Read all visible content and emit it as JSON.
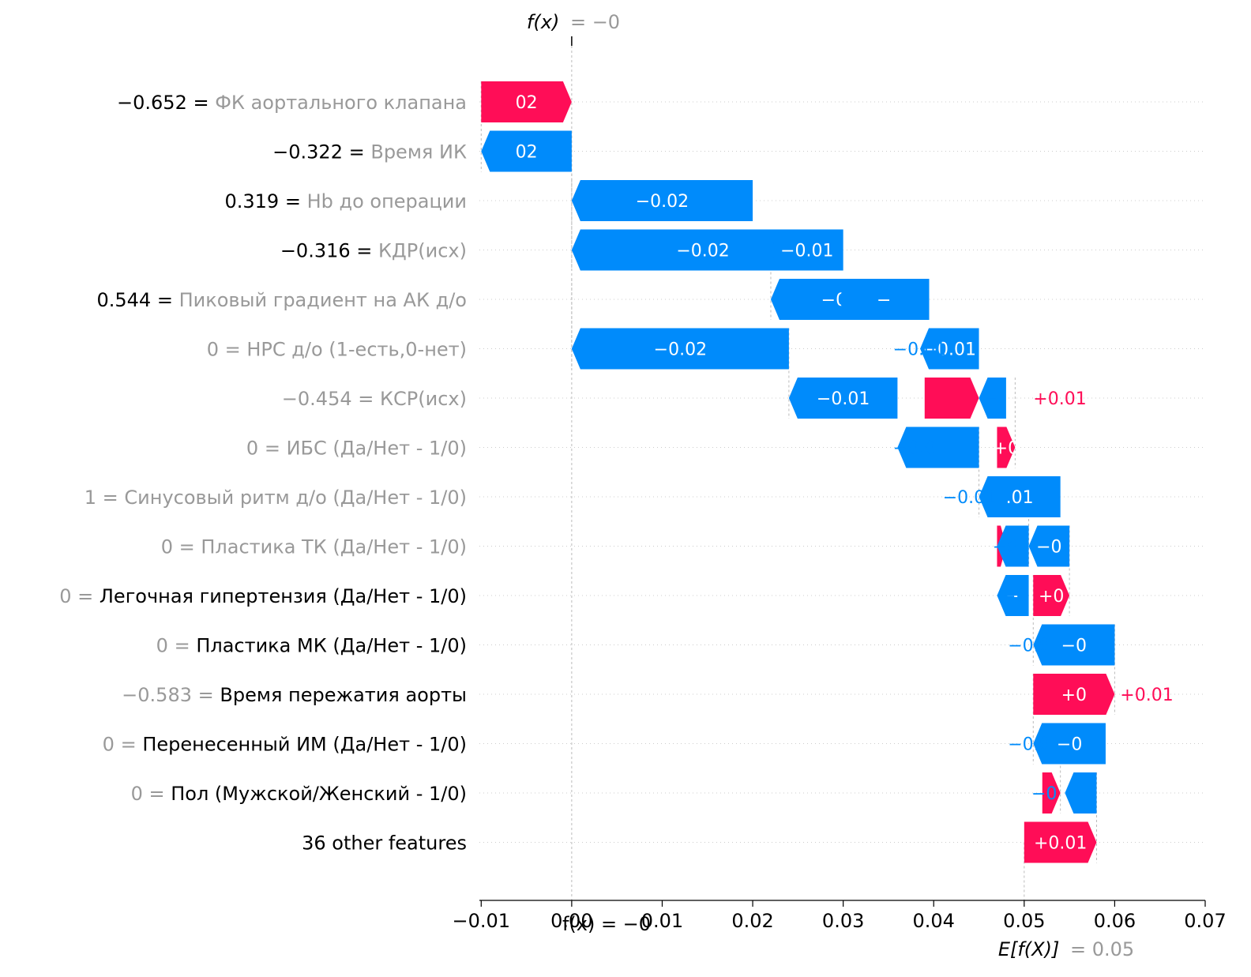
{
  "chart_data": {
    "type": "waterfall",
    "fx_label_prefix": "f(x)",
    "fx_label_value": "= −0",
    "fx_axis_label": "f(x) = −0",
    "ex_label_prefix": "E[f(X)]",
    "ex_label_value": "= 0.05",
    "colors": {
      "positive": "#ff0d57",
      "negative": "#008bfb",
      "grey": "#999999",
      "black": "#000000"
    },
    "xlim": [
      -0.0102,
      0.07
    ],
    "ticks": [
      "−0.01",
      "0.00",
      "0.01",
      "0.02",
      "0.03",
      "0.04",
      "0.05",
      "0.06",
      "0.07"
    ],
    "tick_values": [
      -0.01,
      0.0,
      0.01,
      0.02,
      0.03,
      0.04,
      0.05,
      0.06,
      0.07
    ],
    "fx": 0.0,
    "ex": 0.05,
    "rows": [
      {
        "value_text": "−0.652",
        "eq": "=",
        "name": "ФК аортального клапана",
        "value_color": "black",
        "name_color": "grey",
        "start": -0.01,
        "end": 0.0,
        "sign": "positive",
        "label": "02"
      },
      {
        "value_text": "−0.322",
        "eq": "=",
        "name": "Время ИК",
        "value_color": "black",
        "name_color": "grey",
        "start": 0.0,
        "end": -0.01,
        "sign": "negative",
        "label": "02"
      },
      {
        "value_text": "0.319",
        "eq": "=",
        "name": "Hb до операции",
        "value_color": "black",
        "name_color": "grey",
        "start": 0.02,
        "end": 0.0,
        "sign": "negative",
        "label": "−0.02"
      },
      {
        "value_text": "−0.316",
        "eq": "=",
        "name": "КДР(исх)",
        "value_color": "black",
        "name_color": "grey",
        "start": 0.029,
        "end": 0.0,
        "sign": "negative",
        "label": "−0.02"
      },
      {
        "value_text": "0.544",
        "eq": "=",
        "name": "Пиковый градиент на АК д/о",
        "value_color": "black",
        "name_color": "grey",
        "start": 0.039,
        "end": 0.022,
        "sign": "negative",
        "label": "−0.01"
      },
      {
        "value_text": "0",
        "eq": "=",
        "name": "НРС д/о  (1-есть,0-нет)",
        "value_color": "grey",
        "name_color": "grey",
        "start": 0.024,
        "end": 0.0,
        "sign": "negative",
        "label": "−0.02"
      },
      {
        "value_text": "−0.454",
        "eq": "=",
        "name": "КСР(исх)",
        "value_color": "grey",
        "name_color": "grey",
        "start": 0.036,
        "end": 0.024,
        "sign": "negative",
        "label": "−0.01"
      },
      {
        "value_text": "0",
        "eq": "=",
        "name": "ИБС (Да/Нет - 1/0)",
        "value_color": "grey",
        "name_color": "grey",
        "start": 0.047,
        "end": 0.049,
        "sign": "positive",
        "label": "+0"
      },
      {
        "value_text": "1",
        "eq": "=",
        "name": "Синусовый ритм д/о (Да/Нет - 1/0)",
        "value_color": "grey",
        "name_color": "grey",
        "start": 0.054,
        "end": 0.045,
        "sign": "negative",
        "label": ".01"
      },
      {
        "value_text": "0",
        "eq": "=",
        "name": "Пластика ТК (Да/Нет - 1/0)",
        "value_color": "grey",
        "name_color": "grey",
        "start": 0.055,
        "end": 0.0505,
        "sign": "negative",
        "label": "−0"
      },
      {
        "value_text": "0",
        "eq": "=",
        "name": "Легочная гипертензия (Да/Нет - 1/0)",
        "value_color": "grey",
        "name_color": "black",
        "start": 0.051,
        "end": 0.055,
        "sign": "positive",
        "label": "+0"
      },
      {
        "value_text": "0",
        "eq": "=",
        "name": "Пластика МК (Да/Нет - 1/0)",
        "value_color": "grey",
        "name_color": "black",
        "start": 0.06,
        "end": 0.051,
        "sign": "negative",
        "label": "−0"
      },
      {
        "value_text": "−0.583",
        "eq": "=",
        "name": "Время пережатия аорты",
        "value_color": "grey",
        "name_color": "black",
        "start": 0.051,
        "end": 0.06,
        "sign": "positive",
        "label": "+0"
      },
      {
        "value_text": "0",
        "eq": "=",
        "name": "Перенесенный ИМ (Да/Нет - 1/0)",
        "value_color": "grey",
        "name_color": "black",
        "start": 0.059,
        "end": 0.051,
        "sign": "negative",
        "label": "−0"
      },
      {
        "value_text": "0",
        "eq": "=",
        "name": "Пол (Мужской/Женский - 1/0)",
        "value_color": "grey",
        "name_color": "black",
        "start": 0.052,
        "end": 0.054,
        "sign": "positive",
        "label": ""
      },
      {
        "value_text": "",
        "eq": "",
        "name": "36 other features",
        "value_color": "black",
        "name_color": "black",
        "start": 0.05,
        "end": 0.058,
        "sign": "positive",
        "label": "+0.01"
      }
    ],
    "overlays": [
      {
        "row": 3,
        "start": 0.03,
        "end": 0.022,
        "sign": "negative",
        "label": "−0.01"
      },
      {
        "row": 4,
        "start": 0.0395,
        "end": 0.0295,
        "sign": "negative",
        "label": "−"
      },
      {
        "row": 5,
        "start": 0.045,
        "end": 0.0385,
        "sign": "negative",
        "label": "−0.01"
      },
      {
        "row": 6,
        "start": 0.039,
        "end": 0.045,
        "sign": "positive",
        "label": ""
      },
      {
        "row": 6,
        "start": 0.048,
        "end": 0.045,
        "sign": "negative",
        "label": ""
      },
      {
        "row": 7,
        "start": 0.045,
        "end": 0.036,
        "sign": "negative",
        "label": ""
      },
      {
        "row": 9,
        "start": 0.047,
        "end": 0.048,
        "sign": "positive",
        "label": ""
      },
      {
        "row": 9,
        "start": 0.0505,
        "end": 0.047,
        "sign": "negative",
        "label": ""
      },
      {
        "row": 10,
        "start": 0.0505,
        "end": 0.047,
        "sign": "negative",
        "label": "−"
      },
      {
        "row": 14,
        "start": 0.058,
        "end": 0.0545,
        "sign": "negative",
        "label": ""
      }
    ],
    "outside_labels": [
      {
        "row": 5,
        "x": 0.0355,
        "text": "−0.01",
        "sign": "negative"
      },
      {
        "row": 6,
        "x": 0.051,
        "text": "+0.01",
        "sign": "positive"
      },
      {
        "row": 6,
        "x": 0.0455,
        "text": "−",
        "sign": "negative"
      },
      {
        "row": 7,
        "x": 0.0355,
        "text": "−0.0",
        "sign": "negative"
      },
      {
        "row": 8,
        "x": 0.041,
        "text": "−0.01",
        "sign": "negative"
      },
      {
        "row": 9,
        "x": 0.0465,
        "text": "−0",
        "sign": "negative"
      },
      {
        "row": 10,
        "x": 0.0475,
        "text": "−0",
        "sign": "negative"
      },
      {
        "row": 11,
        "x": 0.0482,
        "text": "−0.0",
        "sign": "negative"
      },
      {
        "row": 12,
        "x": 0.0606,
        "text": "+0.01",
        "sign": "positive"
      },
      {
        "row": 13,
        "x": 0.0482,
        "text": "−0.0",
        "sign": "negative"
      },
      {
        "row": 14,
        "x": 0.0508,
        "text": "−0",
        "sign": "negative"
      }
    ]
  }
}
